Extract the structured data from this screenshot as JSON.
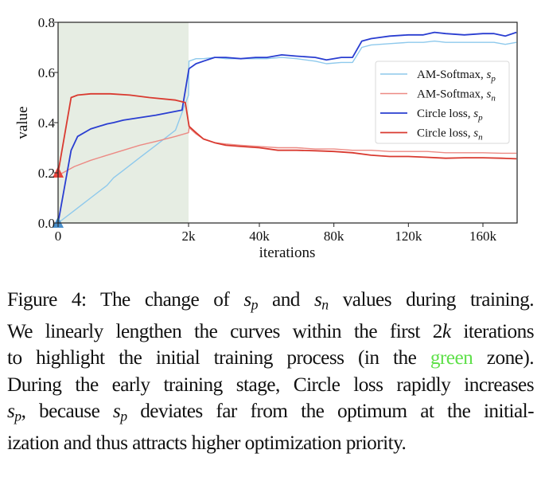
{
  "chart_data": {
    "type": "line",
    "title": "",
    "xlabel": "iterations",
    "ylabel": "value",
    "ylim": [
      0.0,
      0.8
    ],
    "xlim_note": "first 2k iterations linearly lengthened (green zone), then linear to ~178k",
    "x_ticks": [
      {
        "value": 0,
        "label": "0"
      },
      {
        "value": 2,
        "label": "2k"
      },
      {
        "value": 40,
        "label": "40k"
      },
      {
        "value": 80,
        "label": "80k"
      },
      {
        "value": 120,
        "label": "120k"
      },
      {
        "value": 160,
        "label": "160k"
      }
    ],
    "y_ticks": [
      {
        "value": 0.0,
        "label": "0.0"
      },
      {
        "value": 0.2,
        "label": "0.2"
      },
      {
        "value": 0.4,
        "label": "0.4"
      },
      {
        "value": 0.6,
        "label": "0.6"
      },
      {
        "value": 0.8,
        "label": "0.8"
      }
    ],
    "x_max": 178,
    "green_zone": {
      "from": 0,
      "to": 2,
      "color": "#e6ede3"
    },
    "grid": false,
    "legend": {
      "position": "center-right",
      "entries": [
        "AM-Softmax, s_p",
        "AM-Softmax, s_n",
        "Circle loss, s_p",
        "Circle loss, s_n"
      ]
    },
    "markers": [
      {
        "x": 0,
        "y": 0.2,
        "shape": "triangle",
        "color": "#e8453c"
      },
      {
        "x": 0,
        "y": 0.0,
        "shape": "triangle",
        "color": "#4a8fcb"
      }
    ],
    "series": [
      {
        "name": "AM-Softmax, s_p",
        "legend_main": "AM-Softmax,",
        "legend_sym": "s",
        "legend_sub": "p",
        "color": "#8ec9ec",
        "width": 1.4,
        "x": [
          0,
          0.25,
          0.5,
          0.75,
          0.85,
          1.0,
          1.25,
          1.5,
          1.8,
          2.0,
          2.2,
          6,
          10,
          16,
          22,
          30,
          38,
          44,
          52,
          60,
          70,
          76,
          84,
          90,
          95,
          100,
          110,
          120,
          128,
          134,
          140,
          150,
          160,
          166,
          172,
          178
        ],
        "y": [
          0.0,
          0.05,
          0.1,
          0.15,
          0.18,
          0.21,
          0.26,
          0.31,
          0.37,
          0.51,
          0.645,
          0.655,
          0.655,
          0.66,
          0.655,
          0.655,
          0.655,
          0.655,
          0.66,
          0.655,
          0.645,
          0.635,
          0.64,
          0.64,
          0.7,
          0.71,
          0.715,
          0.72,
          0.72,
          0.725,
          0.72,
          0.72,
          0.72,
          0.72,
          0.712,
          0.72
        ]
      },
      {
        "name": "AM-Softmax, s_n",
        "legend_main": "AM-Softmax,",
        "legend_sym": "s",
        "legend_sub": "n",
        "color": "#ec8a84",
        "width": 1.4,
        "x": [
          0,
          0.25,
          0.5,
          0.75,
          1.0,
          1.25,
          1.5,
          1.8,
          2.0,
          2.3,
          6,
          10,
          16,
          22,
          30,
          40,
          50,
          60,
          70,
          80,
          90,
          100,
          110,
          120,
          130,
          140,
          150,
          160,
          170,
          178
        ],
        "y": [
          0.19,
          0.225,
          0.25,
          0.27,
          0.29,
          0.31,
          0.325,
          0.345,
          0.36,
          0.38,
          0.355,
          0.335,
          0.32,
          0.315,
          0.31,
          0.305,
          0.3,
          0.3,
          0.295,
          0.295,
          0.29,
          0.29,
          0.285,
          0.285,
          0.285,
          0.28,
          0.28,
          0.28,
          0.278,
          0.278
        ]
      },
      {
        "name": "Circle loss, s_p",
        "legend_main": "Circle loss,",
        "legend_sym": "s",
        "legend_sub": "p",
        "color": "#2a3ed1",
        "width": 1.8,
        "x": [
          0,
          0.2,
          0.3,
          0.5,
          0.75,
          0.85,
          1.0,
          1.5,
          1.9,
          2.2,
          6,
          10,
          16,
          22,
          30,
          38,
          44,
          52,
          60,
          70,
          76,
          84,
          90,
          95,
          100,
          110,
          120,
          128,
          134,
          140,
          150,
          160,
          166,
          172,
          178
        ],
        "y": [
          0.0,
          0.29,
          0.345,
          0.375,
          0.395,
          0.4,
          0.41,
          0.43,
          0.45,
          0.615,
          0.635,
          0.645,
          0.66,
          0.66,
          0.655,
          0.66,
          0.66,
          0.67,
          0.665,
          0.66,
          0.65,
          0.66,
          0.66,
          0.725,
          0.735,
          0.745,
          0.75,
          0.75,
          0.76,
          0.755,
          0.75,
          0.755,
          0.755,
          0.745,
          0.76
        ]
      },
      {
        "name": "Circle loss, s_n",
        "legend_main": "Circle loss,",
        "legend_sym": "s",
        "legend_sub": "n",
        "color": "#d93a30",
        "width": 1.8,
        "x": [
          0,
          0.2,
          0.3,
          0.5,
          0.8,
          1.1,
          1.4,
          1.8,
          1.95,
          2.3,
          6,
          10,
          16,
          22,
          30,
          40,
          50,
          60,
          70,
          80,
          90,
          100,
          110,
          120,
          130,
          140,
          150,
          160,
          170,
          178
        ],
        "y": [
          0.2,
          0.5,
          0.51,
          0.515,
          0.515,
          0.51,
          0.5,
          0.49,
          0.48,
          0.385,
          0.36,
          0.335,
          0.32,
          0.31,
          0.305,
          0.3,
          0.29,
          0.29,
          0.288,
          0.285,
          0.28,
          0.27,
          0.265,
          0.265,
          0.262,
          0.258,
          0.26,
          0.26,
          0.258,
          0.256
        ]
      }
    ]
  },
  "caption": {
    "lines": [
      [
        {
          "t": "Figure 4:  The change of "
        },
        {
          "t": "s",
          "i": true,
          "sub": "p"
        },
        {
          "t": " and "
        },
        {
          "t": "s",
          "i": true,
          "sub": "n"
        },
        {
          "t": " values during training."
        }
      ],
      [
        {
          "t": "We linearly lengthen the curves within the first 2"
        },
        {
          "t": "k",
          "i": true
        },
        {
          "t": " iterations"
        }
      ],
      [
        {
          "t": "to highlight the initial training process (in the "
        },
        {
          "t": "green",
          "green": true
        },
        {
          "t": " zone)."
        }
      ],
      [
        {
          "t": "During the early training stage, Circle loss rapidly increases"
        }
      ],
      [
        {
          "t": "s",
          "i": true,
          "sub": "p"
        },
        {
          "t": ", because "
        },
        {
          "t": "s",
          "i": true,
          "sub": "p"
        },
        {
          "t": " deviates far from the optimum at the initial-"
        }
      ],
      [
        {
          "t": "ization and thus attracts higher optimization priority."
        }
      ]
    ],
    "green_color": "#5fe04a"
  }
}
